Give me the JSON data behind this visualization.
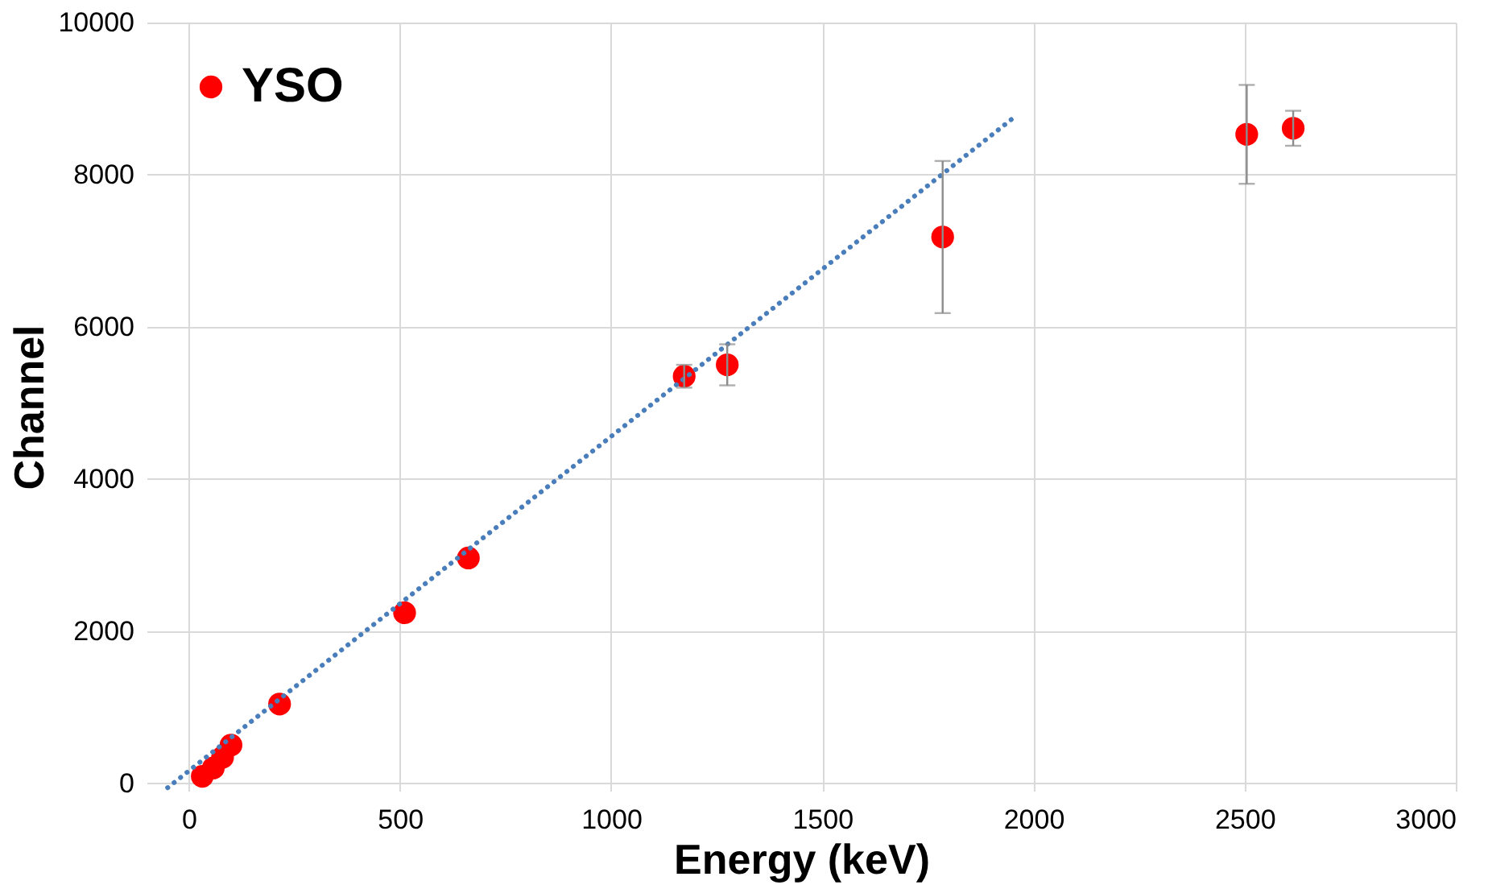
{
  "chart_data": {
    "type": "scatter",
    "xlabel": "Energy (keV)",
    "ylabel": "Channel",
    "xlim": [
      -100,
      3000
    ],
    "xticks": [
      0,
      500,
      1000,
      1500,
      2000,
      2500,
      3000
    ],
    "ylim": [
      -100,
      10000
    ],
    "yticks": [
      0,
      2000,
      4000,
      6000,
      8000,
      10000
    ],
    "grid": true,
    "legend": "top left",
    "series": [
      {
        "name": "YSO",
        "marker": "circle",
        "color": "#ff0000",
        "x": [
          32,
          58,
          80,
          100,
          215,
          511,
          662,
          1173,
          1275,
          1785,
          2505,
          2615
        ],
        "values": [
          90,
          200,
          340,
          500,
          1040,
          2240,
          2960,
          5350,
          5500,
          7180,
          8530,
          8610
        ],
        "errors": [
          null,
          null,
          null,
          null,
          null,
          null,
          null,
          150,
          270,
          1000,
          650,
          230
        ]
      },
      {
        "type": "line",
        "color": "#4a7ebb",
        "line_style": "dotted",
        "x": [
          -50,
          1960
        ],
        "values": [
          -60,
          8780
        ]
      }
    ]
  }
}
